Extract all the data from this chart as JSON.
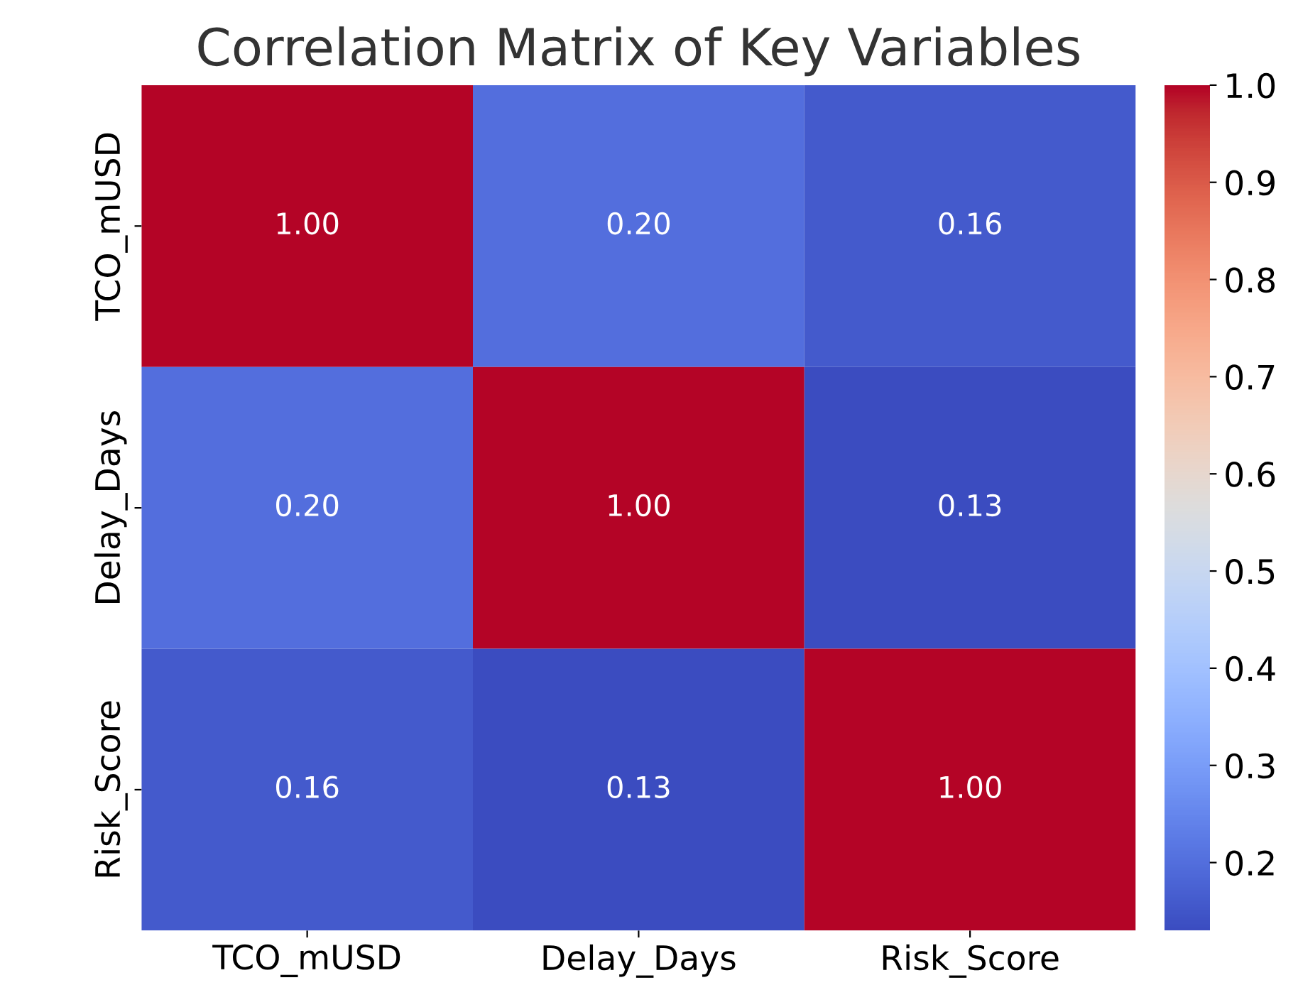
{
  "chart_data": {
    "type": "heatmap",
    "title": "Correlation Matrix of Key Variables",
    "categories": [
      "TCO_mUSD",
      "Delay_Days",
      "Risk_Score"
    ],
    "y_categories": [
      "TCO_mUSD",
      "Delay_Days",
      "Risk_Score"
    ],
    "cells": [
      [
        1.0,
        0.2,
        0.16
      ],
      [
        0.2,
        1.0,
        0.13
      ],
      [
        0.16,
        0.13,
        1.0
      ]
    ],
    "cell_labels": [
      [
        "1.00",
        "0.20",
        "0.16"
      ],
      [
        "0.20",
        "1.00",
        "0.13"
      ],
      [
        "0.16",
        "0.13",
        "1.00"
      ]
    ],
    "clim": [
      0.13,
      1.0
    ],
    "cticks": [
      0.2,
      0.3,
      0.4,
      0.5,
      0.6,
      0.7,
      0.8,
      0.9,
      {
        "value": 1.0,
        "label": "1.0"
      }
    ]
  }
}
